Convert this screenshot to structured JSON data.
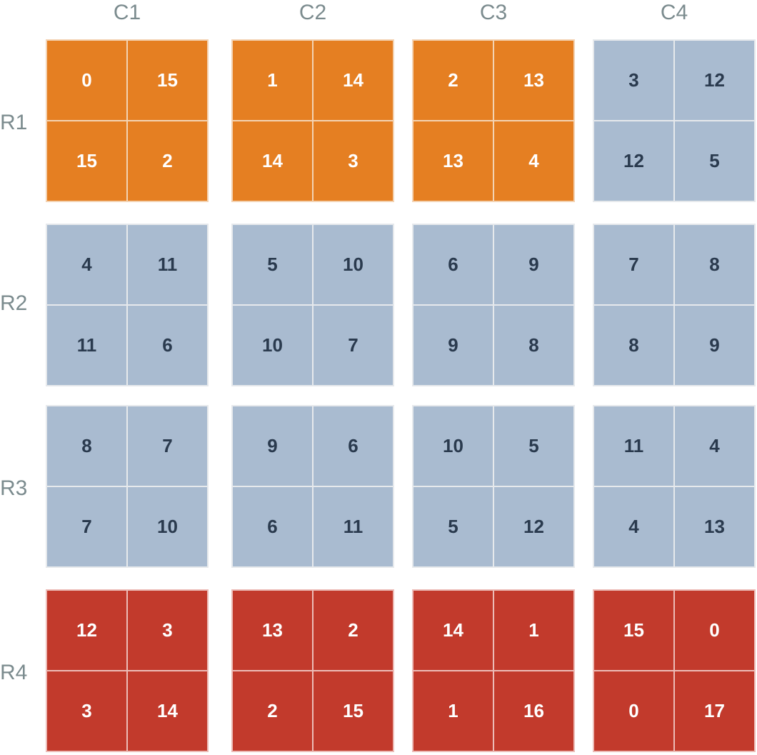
{
  "column_labels": [
    "C1",
    "C2",
    "C3",
    "C4"
  ],
  "row_labels": [
    "R1",
    "R2",
    "R3",
    "R4"
  ],
  "colors": {
    "orange": "#e57f22",
    "blue": "#a9bbd0",
    "red": "#c23a2c",
    "label_text": "#7b8b8e",
    "dark_text": "#2a3a4e",
    "light_text": "#ffffff"
  },
  "grid": [
    [
      {
        "color": "orange",
        "cells": [
          "0",
          "15",
          "15",
          "2"
        ]
      },
      {
        "color": "orange",
        "cells": [
          "1",
          "14",
          "14",
          "3"
        ]
      },
      {
        "color": "orange",
        "cells": [
          "2",
          "13",
          "13",
          "4"
        ]
      },
      {
        "color": "blue",
        "cells": [
          "3",
          "12",
          "12",
          "5"
        ]
      }
    ],
    [
      {
        "color": "blue",
        "cells": [
          "4",
          "11",
          "11",
          "6"
        ]
      },
      {
        "color": "blue",
        "cells": [
          "5",
          "10",
          "10",
          "7"
        ]
      },
      {
        "color": "blue",
        "cells": [
          "6",
          "9",
          "9",
          "8"
        ]
      },
      {
        "color": "blue",
        "cells": [
          "7",
          "8",
          "8",
          "9"
        ]
      }
    ],
    [
      {
        "color": "blue",
        "cells": [
          "8",
          "7",
          "7",
          "10"
        ]
      },
      {
        "color": "blue",
        "cells": [
          "9",
          "6",
          "6",
          "11"
        ]
      },
      {
        "color": "blue",
        "cells": [
          "10",
          "5",
          "5",
          "12"
        ]
      },
      {
        "color": "blue",
        "cells": [
          "11",
          "4",
          "4",
          "13"
        ]
      }
    ],
    [
      {
        "color": "red",
        "cells": [
          "12",
          "3",
          "3",
          "14"
        ]
      },
      {
        "color": "red",
        "cells": [
          "13",
          "2",
          "2",
          "15"
        ]
      },
      {
        "color": "red",
        "cells": [
          "14",
          "1",
          "1",
          "16"
        ]
      },
      {
        "color": "red",
        "cells": [
          "15",
          "0",
          "0",
          "17"
        ]
      }
    ]
  ]
}
